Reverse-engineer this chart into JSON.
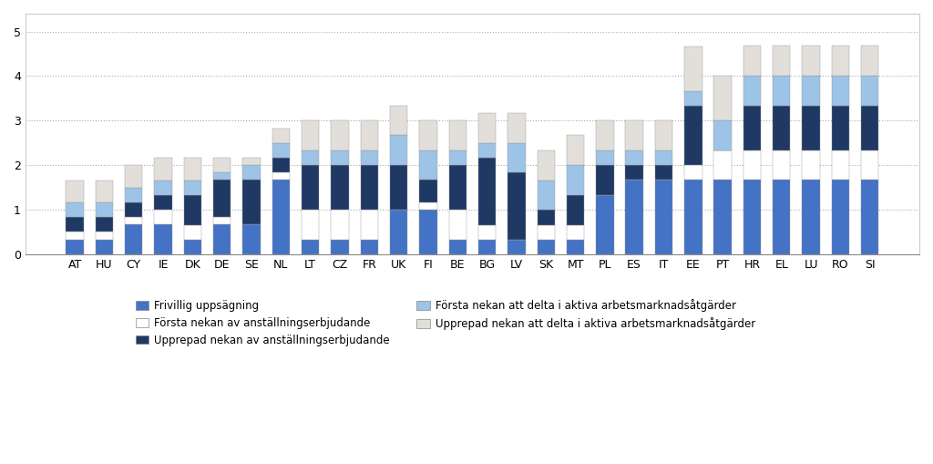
{
  "countries": [
    "AT",
    "HU",
    "CY",
    "IE",
    "DK",
    "DE",
    "SE",
    "NL",
    "LT",
    "CZ",
    "FR",
    "UK",
    "FI",
    "BE",
    "BG",
    "LV",
    "SK",
    "MT",
    "PL",
    "ES",
    "IT",
    "EE",
    "PT",
    "HR",
    "EL",
    "LU",
    "RO",
    "SI"
  ],
  "frivillig": [
    0.33,
    0.33,
    0.67,
    0.67,
    0.33,
    0.67,
    0.67,
    1.67,
    0.33,
    0.33,
    0.33,
    1.0,
    1.0,
    0.33,
    0.33,
    0.33,
    0.33,
    0.33,
    1.33,
    1.67,
    1.67,
    1.67,
    1.67,
    1.67,
    1.67,
    1.67,
    1.67,
    1.67
  ],
  "forsta_nekan_ans": [
    0.17,
    0.17,
    0.17,
    0.33,
    0.33,
    0.17,
    0.0,
    0.17,
    0.67,
    0.67,
    0.67,
    0.0,
    0.17,
    0.67,
    0.33,
    0.0,
    0.33,
    0.33,
    0.0,
    0.0,
    0.0,
    0.33,
    0.67,
    0.67,
    0.67,
    0.67,
    0.67,
    0.67
  ],
  "upprepad_nekan_ans": [
    0.33,
    0.33,
    0.33,
    0.33,
    0.67,
    0.83,
    1.0,
    0.33,
    1.0,
    1.0,
    1.0,
    1.0,
    0.5,
    1.0,
    1.5,
    1.5,
    0.33,
    0.67,
    0.67,
    0.33,
    0.33,
    1.33,
    0.0,
    1.0,
    1.0,
    1.0,
    1.0,
    1.0
  ],
  "forsta_nekan_amg": [
    0.33,
    0.33,
    0.33,
    0.33,
    0.33,
    0.17,
    0.33,
    0.33,
    0.33,
    0.33,
    0.33,
    0.67,
    0.67,
    0.33,
    0.33,
    0.67,
    0.67,
    0.67,
    0.33,
    0.33,
    0.33,
    0.33,
    0.67,
    0.67,
    0.67,
    0.67,
    0.67,
    0.67
  ],
  "upprepad_nekan_amg": [
    0.5,
    0.5,
    0.5,
    0.5,
    0.5,
    0.33,
    0.17,
    0.33,
    0.67,
    0.67,
    0.67,
    0.67,
    0.67,
    0.67,
    0.67,
    0.67,
    0.67,
    0.67,
    0.67,
    0.67,
    0.67,
    1.0,
    1.0,
    0.67,
    0.67,
    0.67,
    0.67,
    0.67
  ],
  "colors": {
    "frivillig": "#4472C4",
    "forsta_nekan_ans": "#FFFFFF",
    "upprepad_nekan_ans": "#1F3864",
    "forsta_nekan_amg": "#9DC3E6",
    "upprepad_nekan_amg": "#E2DFDA"
  },
  "legend_labels": [
    "Frivillig uppsägning",
    "Första nekan av anställningserbjudande",
    "Upprepad nekan av anställningserbjudande",
    "Första nekan att delta i aktiva arbetsmarknadsåtgärder",
    "Upprepad nekan att delta i aktiva arbetsmarknadsåtgärder"
  ],
  "ylim": [
    0,
    5.4
  ],
  "yticks": [
    0,
    1,
    2,
    3,
    4,
    5
  ],
  "background_color": "#FFFFFF",
  "bar_edge_color": "#999999",
  "bar_edge_width": 0.3
}
